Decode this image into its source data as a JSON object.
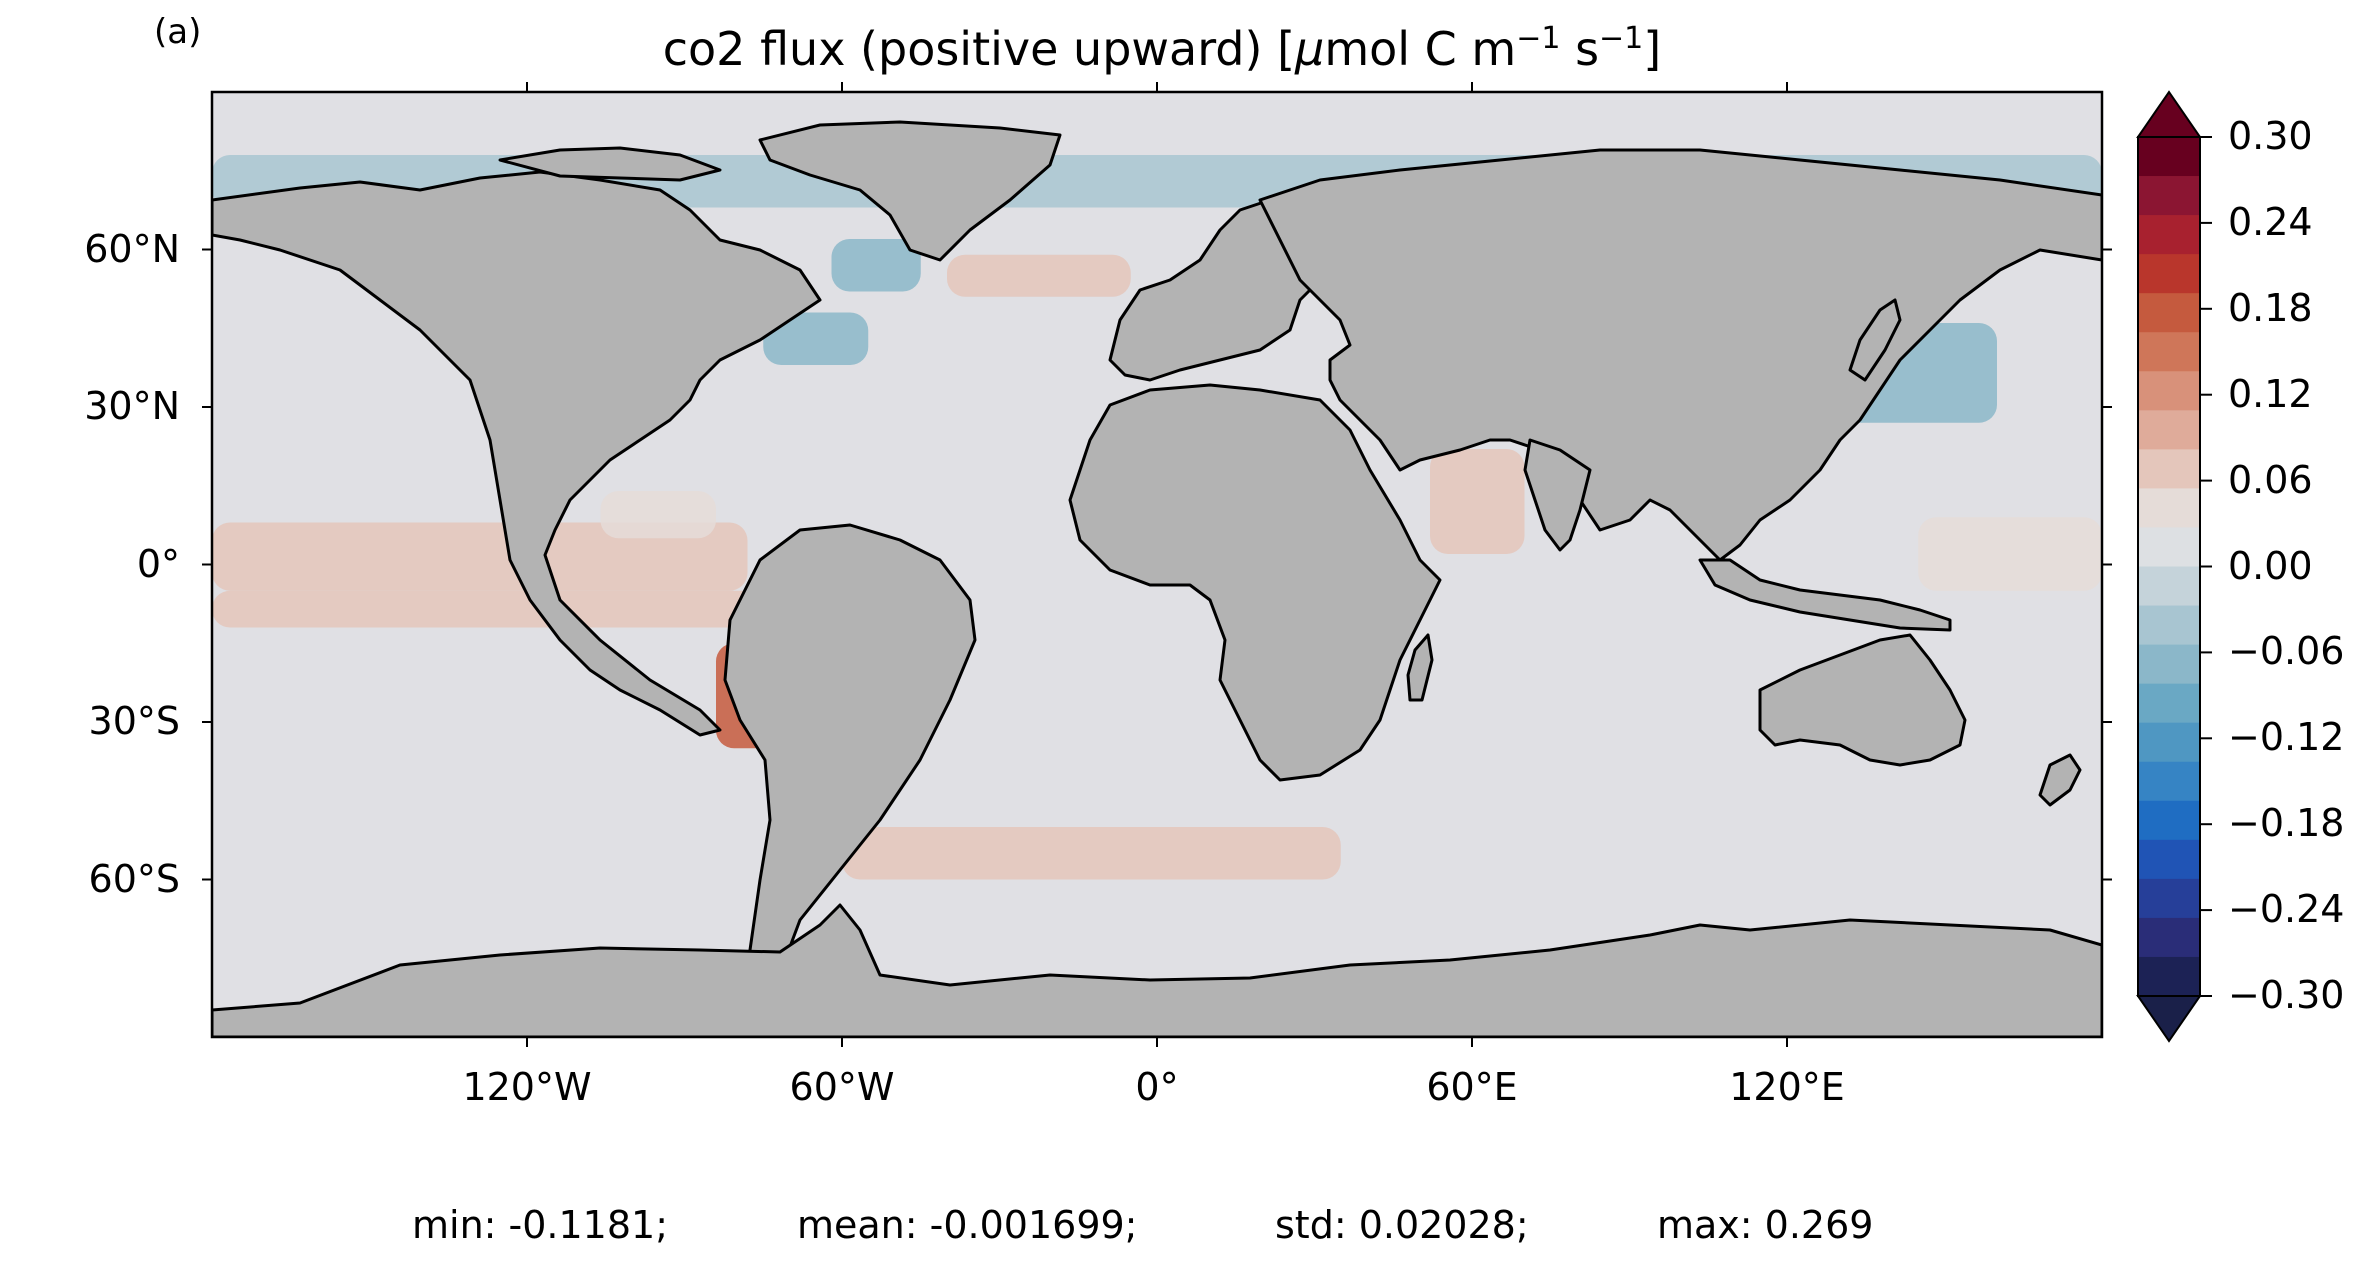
{
  "figure": {
    "panel_label": "(a)",
    "title_main": "co2 flux (positive upward) [",
    "title_mu": "μ",
    "title_unit_a": "mol C m",
    "title_sup1": "−1",
    "title_unit_b": " s",
    "title_sup2": "−1",
    "title_end": "]"
  },
  "map": {
    "projection": "PlateCarree",
    "lon_range": [
      -180,
      180
    ],
    "lat_range": [
      -90,
      90
    ],
    "ocean_color": "#e0e0e4",
    "land_color": "#b3b3b3",
    "coast_color": "#000000",
    "lat_ticks": [
      {
        "value": 60,
        "label": "60°N"
      },
      {
        "value": 30,
        "label": "30°N"
      },
      {
        "value": 0,
        "label": "0°"
      },
      {
        "value": -30,
        "label": "30°S"
      },
      {
        "value": -60,
        "label": "60°S"
      }
    ],
    "lon_ticks": [
      {
        "value": -120,
        "label": "120°W"
      },
      {
        "value": -60,
        "label": "60°W"
      },
      {
        "value": 0,
        "label": "0°"
      },
      {
        "value": 60,
        "label": "60°E"
      },
      {
        "value": 120,
        "label": "120°E"
      }
    ]
  },
  "chart_data": {
    "type": "heatmap",
    "title": "co2 flux (positive upward) [μmol C m−1 s−1]",
    "colorbar": {
      "min": -0.3,
      "max": 0.3,
      "extend": "both",
      "tick_values": [
        0.3,
        0.24,
        0.18,
        0.12,
        0.06,
        0.0,
        -0.06,
        -0.12,
        -0.18,
        -0.24,
        -0.3
      ],
      "tick_labels": [
        "0.30",
        "0.24",
        "0.18",
        "0.12",
        "0.06",
        "0.00",
        "−0.06",
        "−0.12",
        "−0.18",
        "−0.24",
        "−0.30"
      ],
      "level_colors_top_to_bottom": [
        "#67001f",
        "#8b1532",
        "#a8212f",
        "#b9362c",
        "#c55a3e",
        "#cf7659",
        "#d8917a",
        "#dfab9a",
        "#e4c6bb",
        "#e5dcd8",
        "#dde0e3",
        "#c5d3da",
        "#a8c5d1",
        "#8bb7c9",
        "#6aa8c4",
        "#4f97c2",
        "#3684c4",
        "#1f6dc2",
        "#2054b5",
        "#263f99",
        "#2a2d78",
        "#1c2255"
      ],
      "extend_top_color": "#67001f",
      "extend_bottom_color": "#1a2049"
    },
    "regions": [
      {
        "name": "equatorial-pacific",
        "lon": [
          -180,
          -78
        ],
        "lat": [
          -5,
          8
        ],
        "value": 0.07
      },
      {
        "name": "south-east-pacific",
        "lon": [
          -180,
          -75
        ],
        "lat": [
          -12,
          -5
        ],
        "value": 0.07
      },
      {
        "name": "peru-upwelling",
        "lon": [
          -84,
          -73
        ],
        "lat": [
          -35,
          -15
        ],
        "value": 0.17
      },
      {
        "name": "central-america-pacific",
        "lon": [
          -106,
          -84
        ],
        "lat": [
          5,
          14
        ],
        "value": 0.05
      },
      {
        "name": "subpolar-north-atlantic",
        "lon": [
          -40,
          -5
        ],
        "lat": [
          51,
          59
        ],
        "value": 0.07
      },
      {
        "name": "southern-ocean-atlantic-indian",
        "lon": [
          -60,
          35
        ],
        "lat": [
          -60,
          -50
        ],
        "value": 0.08
      },
      {
        "name": "arabian-sea",
        "lon": [
          52,
          70
        ],
        "lat": [
          2,
          22
        ],
        "value": 0.06
      },
      {
        "name": "western-pacific-warm-pool",
        "lon": [
          145,
          180
        ],
        "lat": [
          -5,
          9
        ],
        "value": 0.05
      },
      {
        "name": "kuroshio-extension",
        "lon": [
          125,
          160
        ],
        "lat": [
          27,
          46
        ],
        "value": -0.06
      },
      {
        "name": "gulf-stream",
        "lon": [
          -75,
          -55
        ],
        "lat": [
          38,
          48
        ],
        "value": -0.08
      },
      {
        "name": "labrador-sea",
        "lon": [
          -62,
          -45
        ],
        "lat": [
          52,
          62
        ],
        "value": -0.06
      },
      {
        "name": "arctic-margin",
        "lon": [
          -180,
          180
        ],
        "lat": [
          68,
          78
        ],
        "value": -0.03
      }
    ],
    "stats": {
      "min": -0.1181,
      "mean": -0.001699,
      "std": 0.02028,
      "max": 0.269
    }
  },
  "stats_text": {
    "min": "min: -0.1181;",
    "mean": "mean: -0.001699;",
    "std": "std: 0.02028;",
    "max": "max: 0.269"
  }
}
